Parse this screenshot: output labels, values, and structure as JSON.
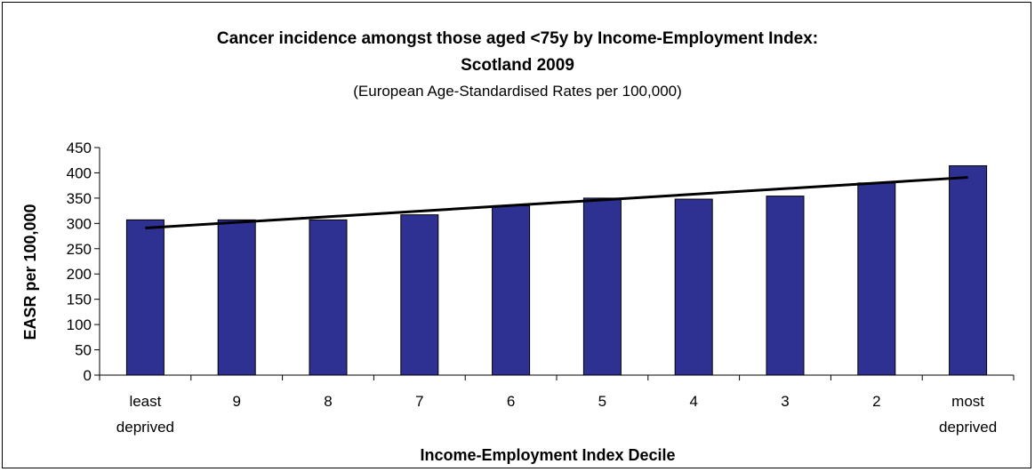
{
  "chart_data": {
    "type": "bar",
    "title": "Cancer incidence amongst those aged <75y by Income-Employment Index:",
    "title_line2": "Scotland 2009",
    "subtitle": "(European Age-Standardised Rates per 100,000)",
    "xlabel": "Income-Employment Index Decile",
    "ylabel": "EASR per 100,000",
    "ylim": [
      0,
      450
    ],
    "yticks": [
      0,
      50,
      100,
      150,
      200,
      250,
      300,
      350,
      400,
      450
    ],
    "categories": [
      [
        "least",
        "deprived"
      ],
      [
        "9"
      ],
      [
        "8"
      ],
      [
        "7"
      ],
      [
        "6"
      ],
      [
        "5"
      ],
      [
        "4"
      ],
      [
        "3"
      ],
      [
        "2"
      ],
      [
        "most",
        "deprived"
      ]
    ],
    "values": [
      307,
      307,
      307,
      317,
      335,
      350,
      348,
      354,
      380,
      414
    ],
    "trendline": {
      "start": 291,
      "end": 391
    },
    "bar_color": "#2e3192",
    "grid": false,
    "legend": "none"
  }
}
